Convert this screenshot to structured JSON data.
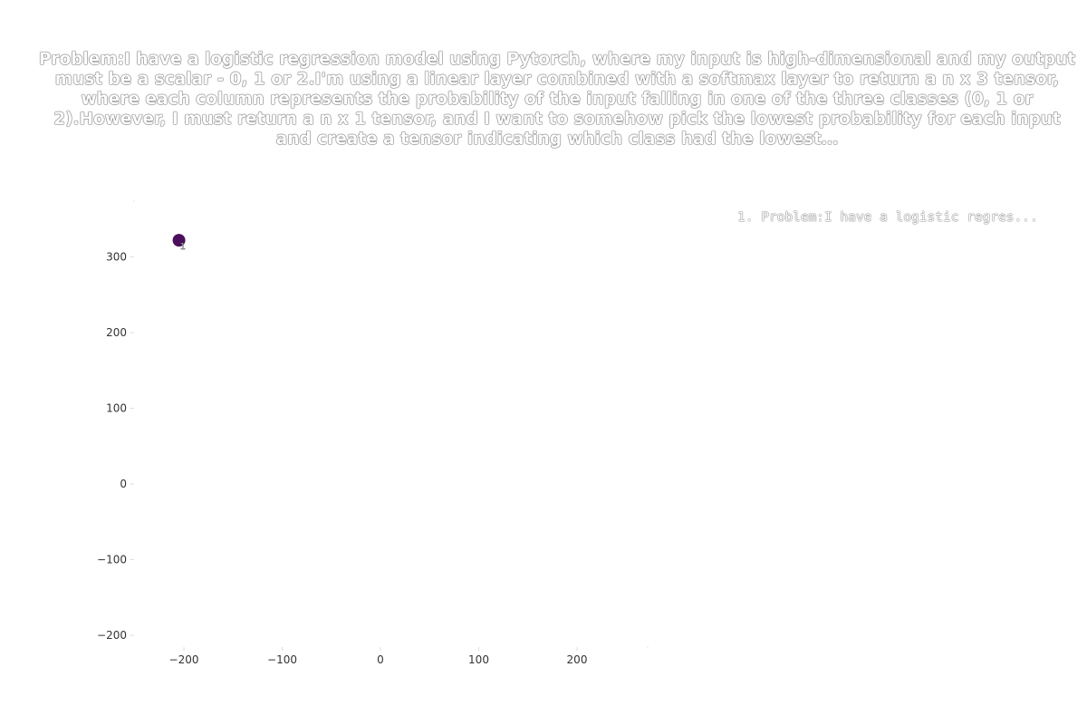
{
  "chart_data": {
    "type": "scatter",
    "title": "Problem:I have a logistic regression model using Pytorch, where my input is high-dimensional and my output must be a scalar - 0, 1 or 2.I'm using a linear layer combined with a softmax layer to return a n x 3 tensor, where each column represents the probability of the input falling in one of the three classes (0, 1 or 2).However, I must return a n x 1 tensor, and I want to somehow pick the lowest probability for each input and create a tensor indicating which class had the lowest…",
    "xlim": [
      -250,
      275
    ],
    "ylim": [
      -220,
      375
    ],
    "x_ticks": [
      -200,
      -100,
      0,
      100,
      200
    ],
    "y_ticks": [
      -200,
      -100,
      0,
      100,
      200,
      300
    ],
    "x_tick_labels": [
      "−200",
      "−100",
      "0",
      "100",
      "200"
    ],
    "y_tick_labels": [
      "−200",
      "−100",
      "0",
      "100",
      "200",
      "300"
    ],
    "grid": false,
    "legend_position": "top-right",
    "legend": [
      "1. Problem:I have a logistic regres..."
    ],
    "points": [
      {
        "x": -205,
        "y": 322,
        "label": "1",
        "color": "#4b0f5c"
      }
    ]
  }
}
